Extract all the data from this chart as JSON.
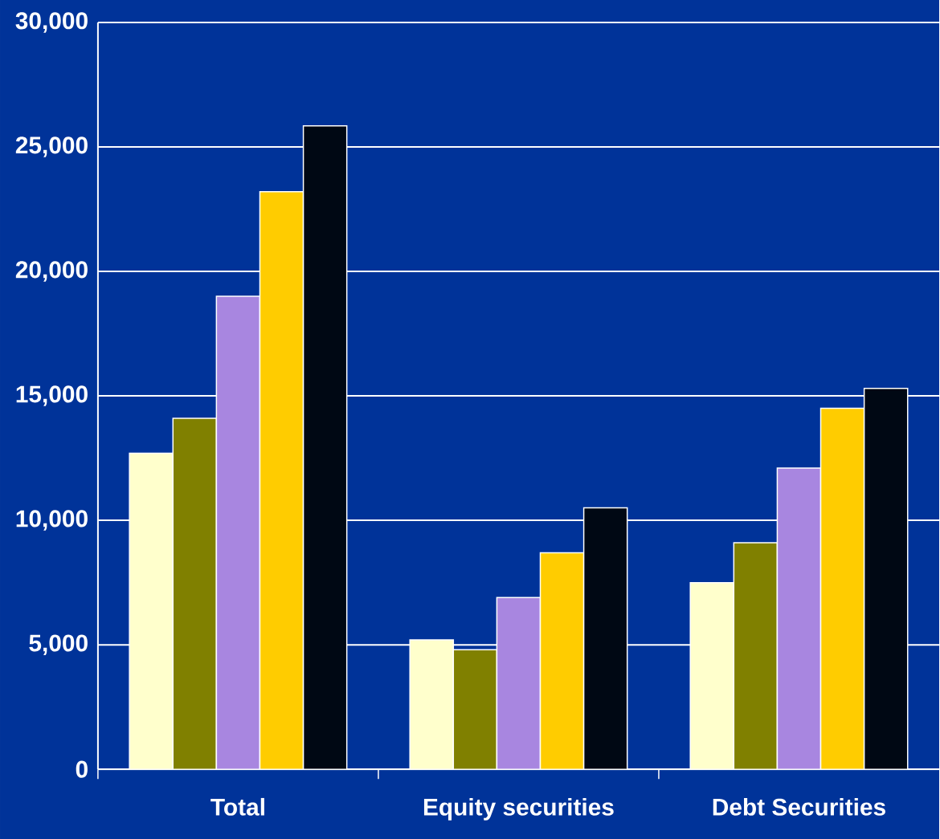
{
  "chart_data": {
    "type": "bar",
    "categories": [
      "Total",
      "Equity securities",
      "Debt Securities"
    ],
    "series": [
      {
        "color": "#ffffcc",
        "values": [
          12700,
          5200,
          7500
        ]
      },
      {
        "color": "#808000",
        "values": [
          14100,
          4800,
          9100
        ]
      },
      {
        "color": "#a886e0",
        "values": [
          19000,
          6900,
          12100
        ]
      },
      {
        "color": "#ffcc00",
        "values": [
          23200,
          8700,
          14500
        ]
      },
      {
        "color": "#000814",
        "values": [
          25850,
          10500,
          15300
        ]
      }
    ],
    "ylim": [
      0,
      30000
    ],
    "yticks": [
      0,
      {
        "value": 5000,
        "label": "5,000"
      },
      {
        "value": 10000,
        "label": "10,000"
      },
      {
        "value": 15000,
        "label": "15,000"
      },
      {
        "value": 20000,
        "label": "20,000"
      },
      {
        "value": 25000,
        "label": "25,000"
      },
      {
        "value": 30000,
        "label": "30,000"
      }
    ],
    "grid": "y"
  }
}
